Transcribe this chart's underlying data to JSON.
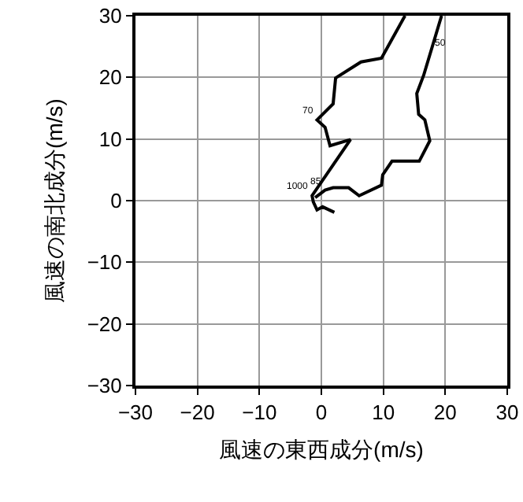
{
  "chart_data": {
    "type": "line",
    "xlabel": "風速の東西成分(m/s)",
    "ylabel": "風速の南北成分(m/s)",
    "xlim": [
      -30,
      30
    ],
    "ylim": [
      -30,
      30
    ],
    "xticks": [
      -30,
      -20,
      -10,
      0,
      10,
      20,
      30
    ],
    "yticks": [
      -30,
      -20,
      -10,
      0,
      10,
      20,
      30
    ],
    "grid": true,
    "x": [
      2.1,
      0.2,
      -0.7,
      -1.3,
      -1.5,
      4.7,
      1.4,
      0.6,
      -0.7,
      1.9,
      2.3,
      6.4,
      9.7,
      13.5,
      null,
      19.4,
      16.5,
      15.4,
      15.7,
      16.7,
      17.5,
      15.8,
      11.4,
      9.9,
      9.7,
      6.1,
      4.4,
      1.9,
      0.6,
      -1.0
    ],
    "series": [
      {
        "color": "#000000",
        "values": [
          -1.9,
          -1.0,
          -1.5,
          -0.2,
          0.8,
          9.9,
          8.9,
          11.9,
          13.1,
          15.7,
          19.9,
          22.5,
          23.1,
          30,
          null,
          30,
          20.3,
          17.4,
          14.0,
          13.1,
          9.7,
          6.4,
          6.4,
          4.2,
          2.5,
          0.8,
          2.1,
          2.1,
          1.7,
          0.5
        ]
      }
    ],
    "annotations": [
      {
        "text": "1000",
        "x": -1.5,
        "y": 0.8
      },
      {
        "text": "85",
        "x": 0.6,
        "y": 1.7
      },
      {
        "text": "70",
        "x": -0.7,
        "y": 13.1
      },
      {
        "text": "50",
        "x": 17.7,
        "y": 24.2
      }
    ]
  }
}
